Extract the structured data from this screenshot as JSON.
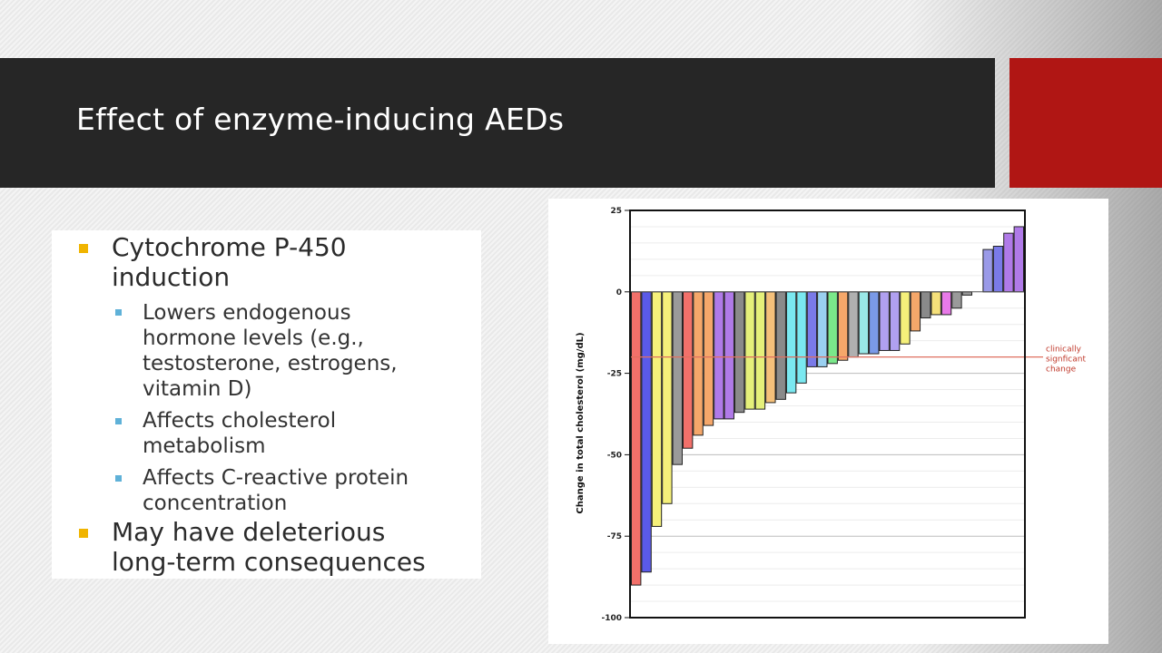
{
  "slide": {
    "title": "Effect of enzyme-inducing AEDs",
    "colors": {
      "title_bar": "#262626",
      "accent": "#b01614",
      "bullet_l1": "#f0b400",
      "bullet_l2": "#5fb1d8"
    }
  },
  "bullets": {
    "b1_line1": "Cytochrome P-450",
    "b1_line2": "induction",
    "b1_sub1_l1": "Lowers endogenous",
    "b1_sub1_l2": "hormone  levels (e.g.,",
    "b1_sub1_l3": "testosterone, estrogens,",
    "b1_sub1_l4": "vitamin D)",
    "b1_sub2_l1": "Affects cholesterol",
    "b1_sub2_l2": "metabolism",
    "b1_sub3_l1": "Affects C-reactive protein",
    "b1_sub3_l2": "concentration",
    "b2_line1": "May have deleterious",
    "b2_line2": "long-term consequences"
  },
  "chart_data": {
    "type": "bar",
    "title": "",
    "xlabel": "",
    "ylabel": "Change in total cholesterol (mg/dL)",
    "ylim": [
      -100,
      25
    ],
    "yticks": [
      25,
      0,
      -25,
      -50,
      -75,
      -100
    ],
    "grid": true,
    "threshold": {
      "value": -20,
      "label_lines": [
        "clinically",
        "signficant",
        "change"
      ],
      "color": "#e07060"
    },
    "values": [
      -90,
      -86,
      -72,
      -65,
      -53,
      -48,
      -44,
      -41,
      -39,
      -39,
      -37,
      -36,
      -36,
      -34,
      -33,
      -31,
      -28,
      -23,
      -23,
      -22,
      -21,
      -20,
      -19,
      -19,
      -18,
      -18,
      -16,
      -12,
      -8,
      -7,
      -7,
      -5,
      -1,
      0,
      13,
      14,
      18,
      20
    ],
    "colors": [
      "#f2706a",
      "#5a5ae8",
      "#f5f07a",
      "#f5f07a",
      "#9a9a9a",
      "#f2706a",
      "#f5a76a",
      "#f5a76a",
      "#b07ae8",
      "#b07ae8",
      "#8a8a8a",
      "#e5f07a",
      "#e5f07a",
      "#f5c07a",
      "#8a8a8a",
      "#7ae8f0",
      "#7ae8f0",
      "#7a7ae8",
      "#9ad0f0",
      "#7ae88a",
      "#f5a76a",
      "#b0b0b0",
      "#9ae8e8",
      "#7a9ae8",
      "#b0a0f0",
      "#b0a0f0",
      "#f5f07a",
      "#f5a76a",
      "#8a8a8a",
      "#f5e07a",
      "#e87ae8",
      "#9a9a9a",
      "#9a9a9a",
      "#7ab0e8",
      "#9a9ae8",
      "#7a7ae8",
      "#b07ae8",
      "#b07ae8"
    ]
  }
}
